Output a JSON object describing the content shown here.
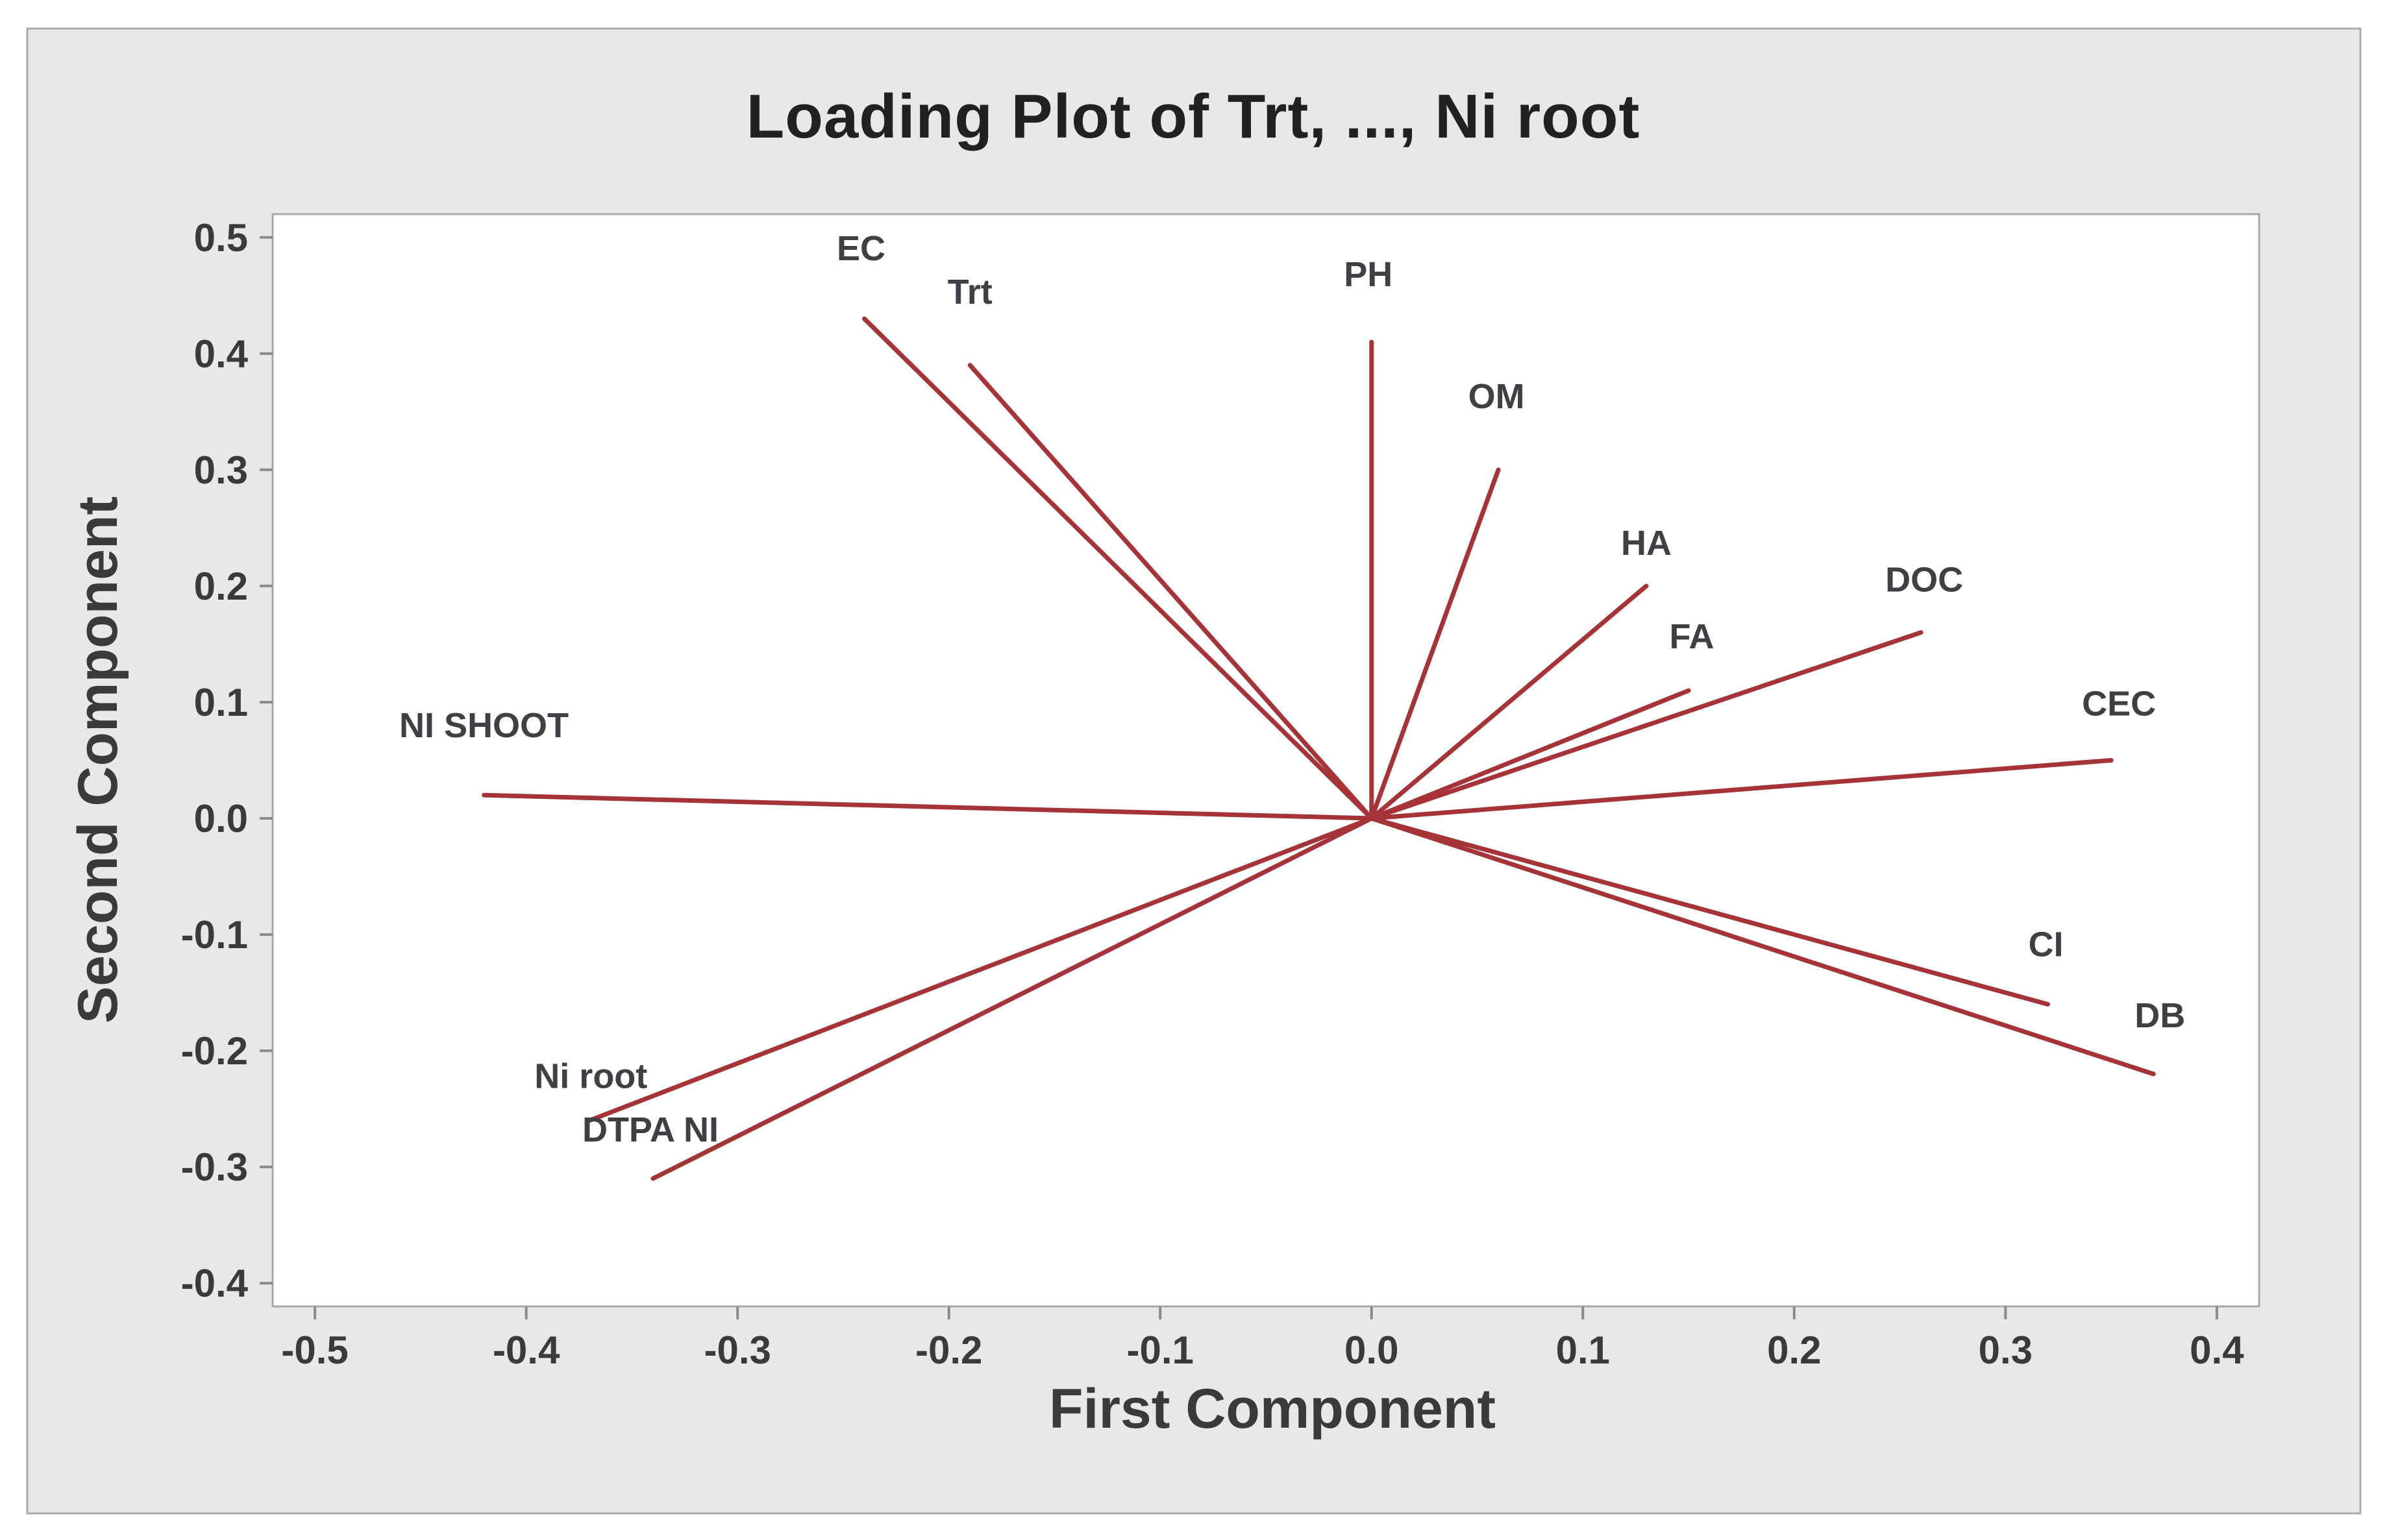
{
  "chart_data": {
    "type": "scatter",
    "subtype": "pca-loading-plot",
    "title": "Loading Plot of Trt, ..., Ni root",
    "xlabel": "First Component",
    "ylabel": "Second Component",
    "xlim": [
      -0.52,
      0.42
    ],
    "ylim": [
      -0.42,
      0.52
    ],
    "x_ticks": [
      "-0.5",
      "-0.4",
      "-0.3",
      "-0.2",
      "-0.1",
      "0.0",
      "0.1",
      "0.2",
      "0.3",
      "0.4"
    ],
    "y_ticks": [
      "0.5",
      "0.4",
      "0.3",
      "0.2",
      "0.1",
      "0.0",
      "-0.1",
      "-0.2",
      "-0.3",
      "-0.4"
    ],
    "grid": false,
    "legend": "none",
    "vectors_from_origin": true,
    "origin": [
      0.0,
      0.0
    ],
    "vectors": [
      {
        "label": "Trt",
        "x": -0.19,
        "y": 0.39
      },
      {
        "label": "EC",
        "x": -0.24,
        "y": 0.43
      },
      {
        "label": "PH",
        "x": 0.0,
        "y": 0.41
      },
      {
        "label": "OM",
        "x": 0.06,
        "y": 0.3
      },
      {
        "label": "HA",
        "x": 0.13,
        "y": 0.2
      },
      {
        "label": "FA",
        "x": 0.15,
        "y": 0.11
      },
      {
        "label": "DOC",
        "x": 0.26,
        "y": 0.16
      },
      {
        "label": "CEC",
        "x": 0.35,
        "y": 0.05
      },
      {
        "label": "CI",
        "x": 0.32,
        "y": -0.16
      },
      {
        "label": "DB",
        "x": 0.37,
        "y": -0.22
      },
      {
        "label": "NI SHOOT",
        "x": -0.42,
        "y": 0.02
      },
      {
        "label": "DTPA NI",
        "x": -0.34,
        "y": -0.31
      },
      {
        "label": "Ni root",
        "x": -0.37,
        "y": -0.26
      }
    ]
  },
  "colors": {
    "page_bg": "#FFFFFF",
    "panel_bg": "#E8E8E8",
    "panel_border": "#ABABAB",
    "plot_bg": "#FFFFFF",
    "plot_border": "#A8A8A8",
    "tick_mark": "#8A8A8A",
    "vector_line": "#A53338",
    "title_text": "#212121",
    "axis_title_text": "#3A3A3A",
    "tick_text": "#3A3A3A",
    "var_label_text": "#3F3F46"
  }
}
